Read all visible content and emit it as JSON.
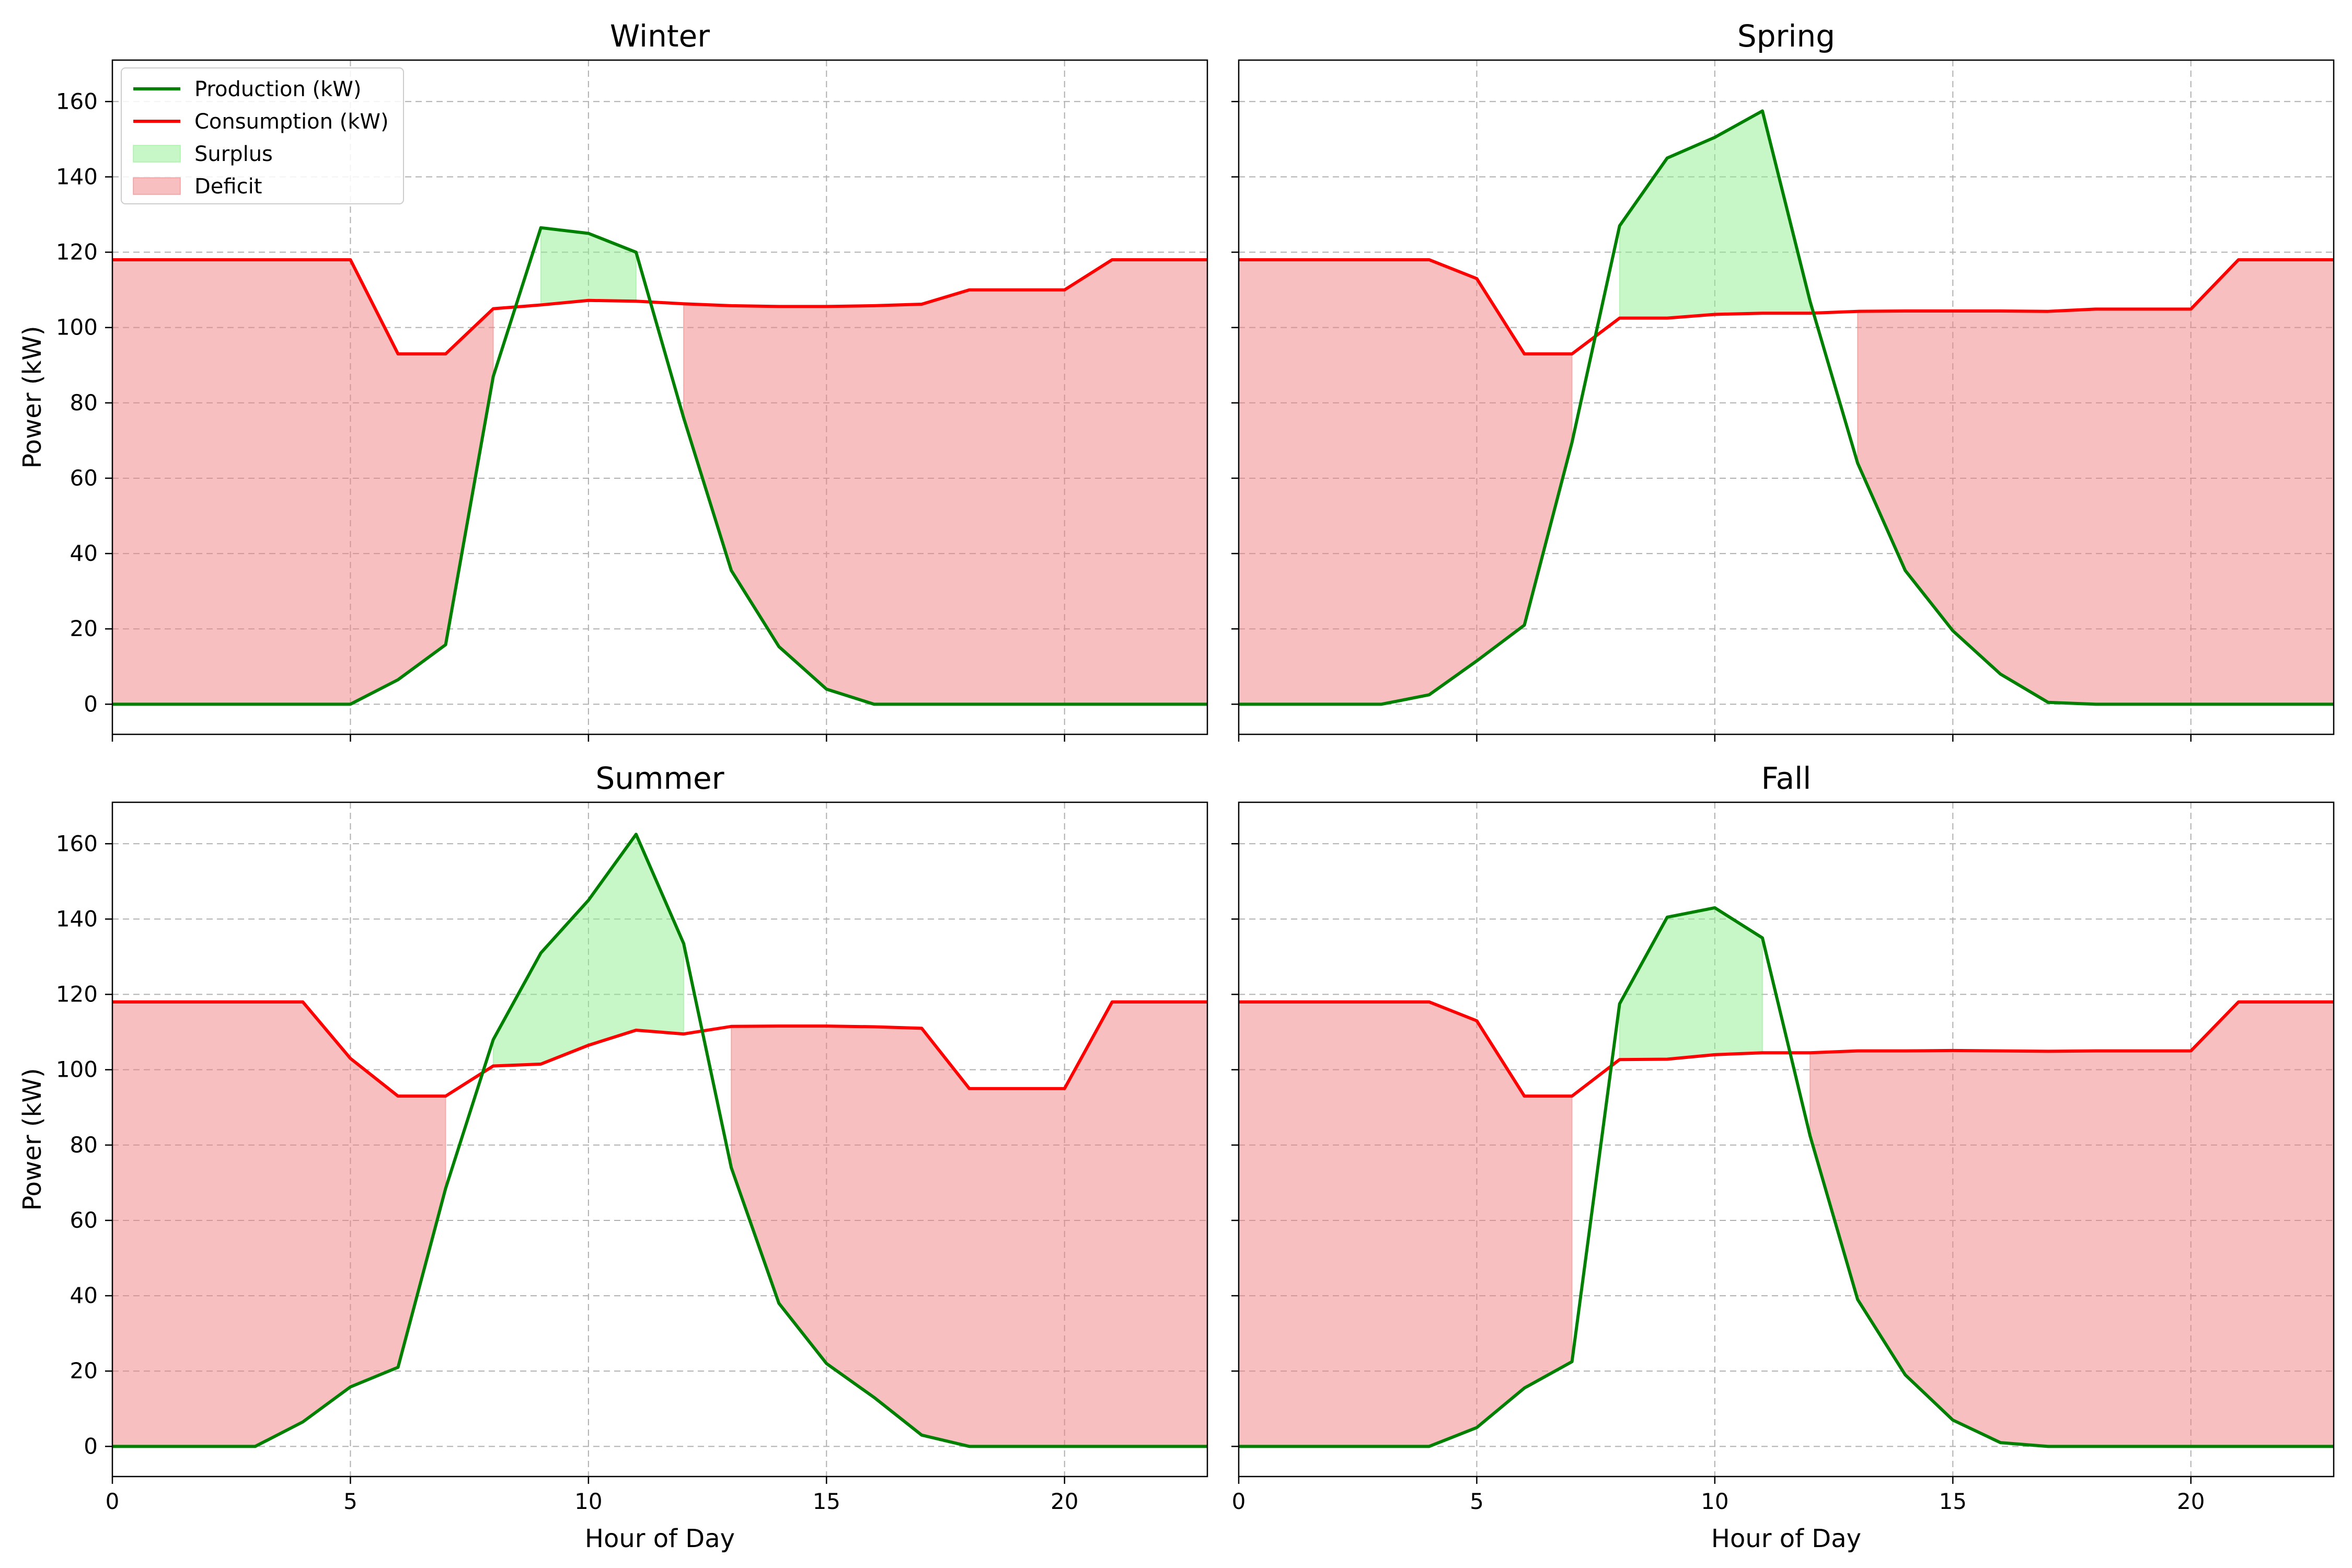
{
  "chart_data": {
    "type": "line",
    "layout": "2x2 grid, shared x and y axes",
    "xlabel": "Hour of Day",
    "ylabel": "Power (kW)",
    "xlim": [
      0,
      23
    ],
    "ylim": [
      -8,
      171
    ],
    "xticks": [
      0,
      5,
      10,
      15,
      20
    ],
    "yticks": [
      0,
      20,
      40,
      60,
      80,
      100,
      120,
      140,
      160
    ],
    "grid": true,
    "grid_style": "dashed",
    "legend_location": "upper left of first panel",
    "legend": [
      "Production (kW)",
      "Consumption (kW)",
      "Surplus",
      "Deficit"
    ],
    "colors": {
      "production": "#008000",
      "consumption": "#ff0000",
      "surplus_fill": "#90ee90",
      "deficit_fill": "#f08080"
    },
    "hours": [
      0,
      1,
      2,
      3,
      4,
      5,
      6,
      7,
      8,
      9,
      10,
      11,
      12,
      13,
      14,
      15,
      16,
      17,
      18,
      19,
      20,
      21,
      22,
      23
    ],
    "panels": [
      {
        "title": "Winter",
        "series": [
          {
            "name": "Production (kW)",
            "values": [
              0,
              0,
              0,
              0,
              0,
              0,
              6.5,
              15.8,
              87,
              126.5,
              125,
              120,
              76,
              35.5,
              15.3,
              4,
              0,
              0,
              0,
              0,
              0,
              0,
              0,
              0
            ]
          },
          {
            "name": "Consumption (kW)",
            "values": [
              118,
              118,
              118,
              118,
              118,
              118,
              93,
              93,
              105,
              106,
              107.2,
              107,
              106.3,
              105.8,
              105.6,
              105.6,
              105.8,
              106.2,
              110,
              110,
              110,
              118,
              118,
              118
            ]
          }
        ]
      },
      {
        "title": "Spring",
        "series": [
          {
            "name": "Production (kW)",
            "values": [
              0,
              0,
              0,
              0,
              2.5,
              11.5,
              21,
              69.5,
              127,
              145,
              150.5,
              157.5,
              107,
              64,
              35.5,
              19.5,
              8,
              0.5,
              0,
              0,
              0,
              0,
              0,
              0
            ]
          },
          {
            "name": "Consumption (kW)",
            "values": [
              118,
              118,
              118,
              118,
              118,
              113,
              93,
              93,
              102.5,
              102.5,
              103.5,
              103.8,
              103.8,
              104.3,
              104.4,
              104.4,
              104.4,
              104.3,
              104.9,
              104.9,
              104.9,
              118,
              118,
              118
            ]
          }
        ]
      },
      {
        "title": "Summer",
        "series": [
          {
            "name": "Production (kW)",
            "values": [
              0,
              0,
              0,
              0,
              6.5,
              15.8,
              21,
              68.5,
              108,
              131,
              145,
              162.5,
              133.5,
              74,
              38,
              22,
              13,
              3,
              0,
              0,
              0,
              0,
              0,
              0
            ]
          },
          {
            "name": "Consumption (kW)",
            "values": [
              118,
              118,
              118,
              118,
              118,
              103,
              93,
              93,
              101,
              101.5,
              106.5,
              110.5,
              109.5,
              111.5,
              111.6,
              111.6,
              111.4,
              111,
              95,
              95,
              95,
              118,
              118,
              118
            ]
          }
        ]
      },
      {
        "title": "Fall",
        "series": [
          {
            "name": "Production (kW)",
            "values": [
              0,
              0,
              0,
              0,
              0,
              5,
              15.5,
              22.5,
              117.5,
              140.5,
              143,
              135,
              82.5,
              39,
              19,
              7,
              1,
              0,
              0,
              0,
              0,
              0,
              0,
              0
            ]
          },
          {
            "name": "Consumption (kW)",
            "values": [
              118,
              118,
              118,
              118,
              118,
              113,
              93,
              93,
              102.7,
              102.8,
              104,
              104.5,
              104.5,
              105,
              105,
              105.1,
              105,
              104.9,
              105,
              105,
              105,
              118,
              118,
              118
            ]
          }
        ]
      }
    ]
  }
}
